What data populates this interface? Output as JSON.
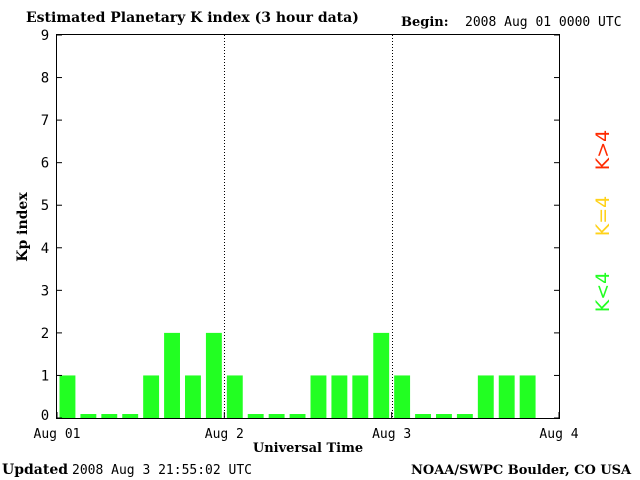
{
  "header": {
    "title": "Estimated Planetary K index (3 hour data)",
    "begin_label": "Begin:",
    "begin_value": "2008 Aug 01 0000 UTC"
  },
  "footer": {
    "updated_label": "Updated",
    "updated_value": "2008 Aug  3 21:55:02 UTC",
    "source": "NOAA/SWPC Boulder, CO USA"
  },
  "legend": {
    "high": "K>4",
    "equal": "K=4",
    "low": "K<4"
  },
  "colors": {
    "bar_low": "#22ff22",
    "bar_equal": "#ffd21a",
    "bar_high": "#ff2a00",
    "axis": "#000000",
    "divider": "#000000",
    "background": "#ffffff"
  },
  "chart_data": {
    "type": "bar",
    "title": "Estimated Planetary K index (3 hour data)",
    "xlabel": "Universal Time",
    "ylabel": "Kp index",
    "ylim": [
      0,
      9
    ],
    "yticks": [
      "0",
      "1",
      "2",
      "3",
      "4",
      "5",
      "6",
      "7",
      "8",
      "9"
    ],
    "x_tick_labels": [
      "Aug 01",
      "Aug 2",
      "Aug 3",
      "Aug 4"
    ],
    "grid": false,
    "day_dividers": true,
    "bars_per_day": 8,
    "total_slots": 24,
    "values": [
      1,
      0,
      0,
      0,
      1,
      2,
      1,
      2,
      1,
      0,
      0,
      0,
      1,
      1,
      1,
      2,
      1,
      0,
      0,
      0,
      1,
      1,
      1
    ]
  }
}
